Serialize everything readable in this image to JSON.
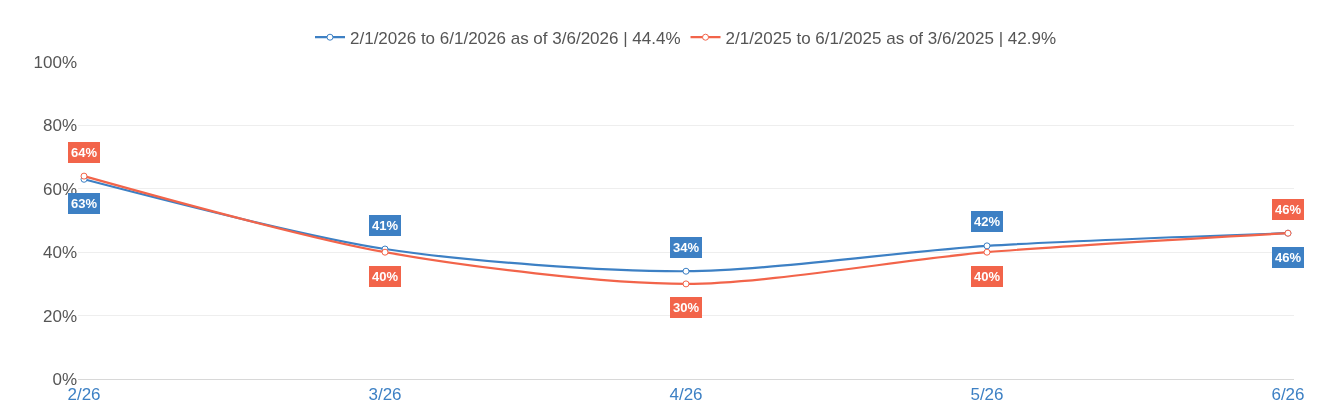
{
  "chart_data": {
    "type": "line",
    "categories": [
      "2/26",
      "3/26",
      "4/26",
      "5/26",
      "6/26"
    ],
    "series": [
      {
        "name": "2/1/2026 to 6/1/2026 as of 3/6/2026 | 44.4%",
        "color": "#3d80c4",
        "values": [
          63,
          41,
          34,
          42,
          46
        ],
        "value_labels": [
          "63%",
          "41%",
          "34%",
          "42%",
          "46%"
        ]
      },
      {
        "name": "2/1/2025 to 6/1/2025 as of 3/6/2025 | 42.9%",
        "color": "#f2644a",
        "values": [
          64,
          40,
          30,
          40,
          46
        ],
        "value_labels": [
          "64%",
          "40%",
          "30%",
          "40%",
          "46%"
        ]
      }
    ],
    "ylim": [
      0,
      100
    ],
    "yticks": [
      {
        "value": 0,
        "label": "0%"
      },
      {
        "value": 20,
        "label": "20%"
      },
      {
        "value": 40,
        "label": "40%"
      },
      {
        "value": 60,
        "label": "60%"
      },
      {
        "value": 80,
        "label": "80%"
      },
      {
        "value": 100,
        "label": "100%"
      }
    ],
    "grid": "y",
    "legend": "top",
    "marker": "circle"
  }
}
